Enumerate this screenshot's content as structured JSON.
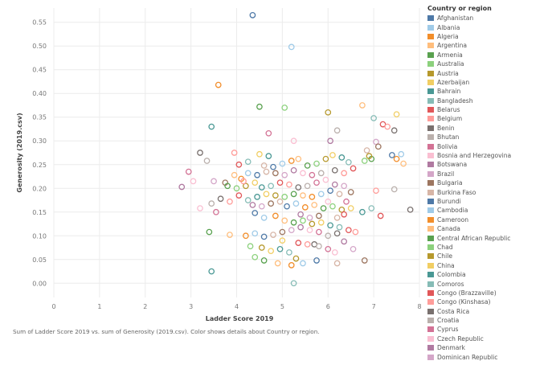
{
  "chart_data": {
    "type": "scatter",
    "title": "",
    "xlabel": "Ladder Score 2019",
    "ylabel": "Generosity (2019.csv)",
    "xlim": [
      0,
      8
    ],
    "ylim": [
      -0.03,
      0.58
    ],
    "x_ticks": [
      "0",
      "1",
      "2",
      "3",
      "4",
      "5",
      "6",
      "7",
      "8"
    ],
    "y_ticks": [
      "0.00",
      "0.05",
      "0.10",
      "0.15",
      "0.20",
      "0.25",
      "0.30",
      "0.35",
      "0.40",
      "0.45",
      "0.50",
      "0.55"
    ],
    "grid": true,
    "marker": "open-circle",
    "caption": "Sum of Ladder Score 2019 vs. sum of Generosity (2019.csv).  Color shows details about Country or region.",
    "legend": {
      "title": "Country or region",
      "placement": "right",
      "entries": [
        {
          "name": "Afghanistan",
          "color": "#4e79a7"
        },
        {
          "name": "Albania",
          "color": "#a0cbe8"
        },
        {
          "name": "Algeria",
          "color": "#f28e2b"
        },
        {
          "name": "Argentina",
          "color": "#ffbe7d"
        },
        {
          "name": "Armenia",
          "color": "#59a14f"
        },
        {
          "name": "Australia",
          "color": "#8cd17d"
        },
        {
          "name": "Austria",
          "color": "#b6992d"
        },
        {
          "name": "Azerbaijan",
          "color": "#f1ce63"
        },
        {
          "name": "Bahrain",
          "color": "#499894"
        },
        {
          "name": "Bangladesh",
          "color": "#86bcb6"
        },
        {
          "name": "Belarus",
          "color": "#e15759"
        },
        {
          "name": "Belgium",
          "color": "#ff9d9a"
        },
        {
          "name": "Benin",
          "color": "#79706e"
        },
        {
          "name": "Bhutan",
          "color": "#bab0ac"
        },
        {
          "name": "Bolivia",
          "color": "#d37295"
        },
        {
          "name": "Bosnia and Herzegovina",
          "color": "#fabfd2"
        },
        {
          "name": "Botswana",
          "color": "#b07aa1"
        },
        {
          "name": "Brazil",
          "color": "#d4a6c8"
        },
        {
          "name": "Bulgaria",
          "color": "#9d7660"
        },
        {
          "name": "Burkina Faso",
          "color": "#d7b5a6"
        },
        {
          "name": "Burundi",
          "color": "#4e79a7"
        },
        {
          "name": "Cambodia",
          "color": "#a0cbe8"
        },
        {
          "name": "Cameroon",
          "color": "#f28e2b"
        },
        {
          "name": "Canada",
          "color": "#ffbe7d"
        },
        {
          "name": "Central African Republic",
          "color": "#59a14f"
        },
        {
          "name": "Chad",
          "color": "#8cd17d"
        },
        {
          "name": "Chile",
          "color": "#b6992d"
        },
        {
          "name": "China",
          "color": "#f1ce63"
        },
        {
          "name": "Colombia",
          "color": "#499894"
        },
        {
          "name": "Comoros",
          "color": "#86bcb6"
        },
        {
          "name": "Congo (Brazzaville)",
          "color": "#e15759"
        },
        {
          "name": "Congo (Kinshasa)",
          "color": "#ff9d9a"
        },
        {
          "name": "Costa Rica",
          "color": "#79706e"
        },
        {
          "name": "Croatia",
          "color": "#bab0ac"
        },
        {
          "name": "Cyprus",
          "color": "#d37295"
        },
        {
          "name": "Czech Republic",
          "color": "#fabfd2"
        },
        {
          "name": "Denmark",
          "color": "#b07aa1"
        },
        {
          "name": "Dominican Republic",
          "color": "#d4a6c8"
        }
      ]
    },
    "palette": [
      "#4e79a7",
      "#a0cbe8",
      "#f28e2b",
      "#ffbe7d",
      "#59a14f",
      "#8cd17d",
      "#b6992d",
      "#f1ce63",
      "#499894",
      "#86bcb6",
      "#e15759",
      "#ff9d9a",
      "#79706e",
      "#bab0ac",
      "#d37295",
      "#fabfd2",
      "#b07aa1",
      "#d4a6c8",
      "#9d7660",
      "#d7b5a6"
    ],
    "points": [
      [
        4.35,
        0.565
      ],
      [
        5.2,
        0.498
      ],
      [
        3.6,
        0.418
      ],
      [
        6.75,
        0.375
      ],
      [
        4.5,
        0.372
      ],
      [
        5.05,
        0.37
      ],
      [
        6.0,
        0.36
      ],
      [
        7.5,
        0.356
      ],
      [
        3.45,
        0.33
      ],
      [
        7.0,
        0.348
      ],
      [
        7.2,
        0.335
      ],
      [
        7.3,
        0.33
      ],
      [
        7.45,
        0.322
      ],
      [
        6.2,
        0.322
      ],
      [
        4.7,
        0.316
      ],
      [
        5.25,
        0.3
      ],
      [
        6.05,
        0.3
      ],
      [
        7.05,
        0.298
      ],
      [
        7.1,
        0.288
      ],
      [
        6.85,
        0.28
      ],
      [
        7.4,
        0.27
      ],
      [
        7.6,
        0.272
      ],
      [
        7.5,
        0.262
      ],
      [
        7.65,
        0.252
      ],
      [
        6.95,
        0.262
      ],
      [
        6.8,
        0.258
      ],
      [
        6.9,
        0.268
      ],
      [
        4.5,
        0.272
      ],
      [
        4.7,
        0.268
      ],
      [
        4.25,
        0.256
      ],
      [
        4.05,
        0.25
      ],
      [
        3.95,
        0.275
      ],
      [
        3.2,
        0.275
      ],
      [
        3.35,
        0.258
      ],
      [
        2.95,
        0.235
      ],
      [
        3.05,
        0.215
      ],
      [
        2.8,
        0.203
      ],
      [
        3.5,
        0.215
      ],
      [
        3.75,
        0.212
      ],
      [
        4.6,
        0.248
      ],
      [
        4.8,
        0.245
      ],
      [
        5.0,
        0.252
      ],
      [
        5.2,
        0.258
      ],
      [
        5.35,
        0.262
      ],
      [
        5.55,
        0.248
      ],
      [
        5.75,
        0.252
      ],
      [
        5.95,
        0.262
      ],
      [
        6.1,
        0.27
      ],
      [
        6.3,
        0.265
      ],
      [
        6.45,
        0.255
      ],
      [
        6.55,
        0.242
      ],
      [
        6.35,
        0.232
      ],
      [
        6.15,
        0.238
      ],
      [
        5.85,
        0.232
      ],
      [
        5.65,
        0.228
      ],
      [
        5.45,
        0.232
      ],
      [
        5.25,
        0.238
      ],
      [
        5.05,
        0.228
      ],
      [
        4.85,
        0.232
      ],
      [
        4.65,
        0.235
      ],
      [
        4.45,
        0.228
      ],
      [
        4.25,
        0.232
      ],
      [
        4.1,
        0.22
      ],
      [
        3.95,
        0.228
      ],
      [
        3.8,
        0.205
      ],
      [
        4.0,
        0.2
      ],
      [
        4.2,
        0.205
      ],
      [
        4.4,
        0.212
      ],
      [
        4.55,
        0.202
      ],
      [
        4.75,
        0.205
      ],
      [
        4.95,
        0.212
      ],
      [
        5.15,
        0.208
      ],
      [
        5.35,
        0.202
      ],
      [
        5.55,
        0.205
      ],
      [
        5.75,
        0.212
      ],
      [
        5.95,
        0.218
      ],
      [
        6.15,
        0.208
      ],
      [
        6.35,
        0.205
      ],
      [
        6.5,
        0.192
      ],
      [
        6.25,
        0.188
      ],
      [
        6.05,
        0.195
      ],
      [
        5.85,
        0.188
      ],
      [
        5.65,
        0.182
      ],
      [
        5.45,
        0.185
      ],
      [
        5.25,
        0.188
      ],
      [
        5.05,
        0.182
      ],
      [
        4.85,
        0.185
      ],
      [
        4.65,
        0.188
      ],
      [
        4.45,
        0.182
      ],
      [
        4.25,
        0.175
      ],
      [
        4.05,
        0.185
      ],
      [
        3.85,
        0.172
      ],
      [
        3.65,
        0.178
      ],
      [
        3.45,
        0.168
      ],
      [
        3.55,
        0.15
      ],
      [
        3.2,
        0.158
      ],
      [
        4.35,
        0.165
      ],
      [
        4.55,
        0.162
      ],
      [
        4.75,
        0.168
      ],
      [
        4.95,
        0.172
      ],
      [
        5.1,
        0.162
      ],
      [
        5.3,
        0.168
      ],
      [
        5.5,
        0.16
      ],
      [
        5.7,
        0.165
      ],
      [
        5.9,
        0.158
      ],
      [
        6.1,
        0.162
      ],
      [
        6.3,
        0.155
      ],
      [
        6.5,
        0.158
      ],
      [
        6.75,
        0.15
      ],
      [
        6.95,
        0.158
      ],
      [
        7.15,
        0.142
      ],
      [
        7.05,
        0.195
      ],
      [
        7.8,
        0.155
      ],
      [
        7.45,
        0.198
      ],
      [
        6.4,
        0.172
      ],
      [
        6.0,
        0.172
      ],
      [
        5.4,
        0.145
      ],
      [
        5.6,
        0.138
      ],
      [
        5.8,
        0.142
      ],
      [
        6.2,
        0.138
      ],
      [
        4.4,
        0.148
      ],
      [
        4.6,
        0.138
      ],
      [
        4.85,
        0.142
      ],
      [
        5.05,
        0.132
      ],
      [
        5.25,
        0.128
      ],
      [
        5.45,
        0.132
      ],
      [
        5.65,
        0.125
      ],
      [
        5.85,
        0.128
      ],
      [
        6.05,
        0.122
      ],
      [
        6.25,
        0.118
      ],
      [
        6.45,
        0.112
      ],
      [
        6.6,
        0.108
      ],
      [
        6.2,
        0.105
      ],
      [
        6.0,
        0.1
      ],
      [
        5.8,
        0.108
      ],
      [
        5.6,
        0.112
      ],
      [
        5.4,
        0.118
      ],
      [
        5.2,
        0.112
      ],
      [
        5.0,
        0.108
      ],
      [
        4.8,
        0.102
      ],
      [
        4.6,
        0.098
      ],
      [
        4.4,
        0.105
      ],
      [
        4.2,
        0.1
      ],
      [
        3.85,
        0.102
      ],
      [
        3.4,
        0.108
      ],
      [
        4.3,
        0.078
      ],
      [
        4.55,
        0.075
      ],
      [
        4.75,
        0.068
      ],
      [
        4.95,
        0.072
      ],
      [
        5.15,
        0.065
      ],
      [
        5.35,
        0.085
      ],
      [
        5.55,
        0.082
      ],
      [
        5.7,
        0.082
      ],
      [
        5.8,
        0.078
      ],
      [
        6.0,
        0.072
      ],
      [
        6.15,
        0.065
      ],
      [
        6.35,
        0.088
      ],
      [
        6.55,
        0.072
      ],
      [
        6.8,
        0.048
      ],
      [
        6.2,
        0.042
      ],
      [
        5.75,
        0.048
      ],
      [
        5.45,
        0.042
      ],
      [
        5.2,
        0.038
      ],
      [
        4.9,
        0.042
      ],
      [
        4.6,
        0.048
      ],
      [
        4.4,
        0.055
      ],
      [
        5.3,
        0.052
      ],
      [
        5.0,
        0.09
      ],
      [
        3.45,
        0.025
      ],
      [
        5.25,
        0.0
      ],
      [
        6.35,
        0.145
      ],
      [
        4.15,
        0.215
      ]
    ]
  }
}
